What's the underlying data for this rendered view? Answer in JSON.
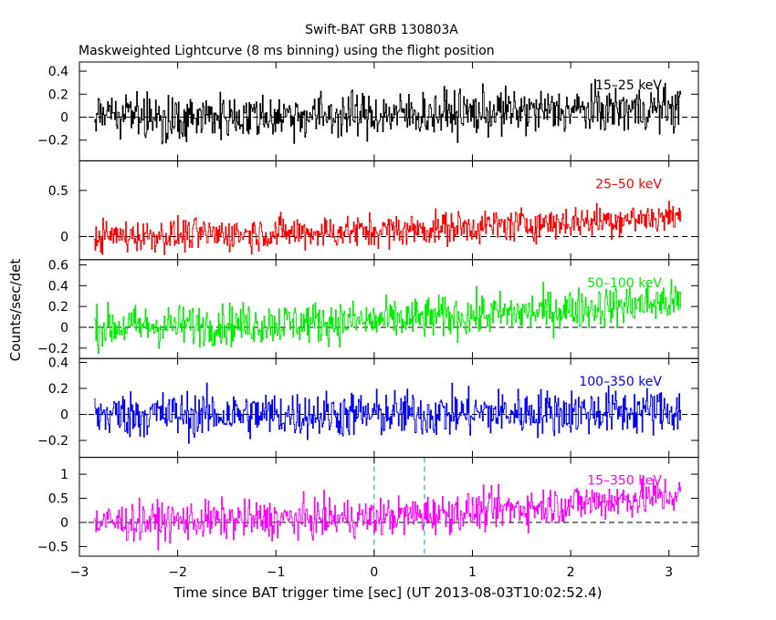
{
  "title": "Swift-BAT GRB 130803A",
  "subtitle": "Maskweighted Lightcurve (8 ms binning) using the flight position",
  "xlabel": "Time since BAT trigger time [sec] (UT 2013-08-03T10:02:52.4)",
  "ylabel": "Counts/sec/det",
  "chart_data": {
    "type": "line",
    "xlim": [
      -3,
      3.3
    ],
    "x_ticks": [
      "−3",
      "−2",
      "−1",
      "0",
      "1",
      "2",
      "3"
    ],
    "x_tick_values": [
      -3,
      -2,
      -1,
      0,
      1,
      2,
      3
    ],
    "t_range": [
      -2.85,
      3.12
    ],
    "bin_width_s": 0.008,
    "vertical_markers": [
      0,
      0.512
    ],
    "marker_color": "#1aa0b0",
    "series": [
      {
        "name": "15–25 keV",
        "color": "#000000",
        "ylim": [
          -0.38,
          0.48
        ],
        "y_ticks": [
          "0.4",
          "0.2",
          "0",
          "−0.2"
        ],
        "y_tick_values": [
          0.4,
          0.2,
          0,
          -0.2
        ],
        "trend": [
          [
            -2.85,
            0.0
          ],
          [
            0,
            0.02
          ],
          [
            3.12,
            0.08
          ]
        ],
        "noise": 0.1
      },
      {
        "name": "25–50 keV",
        "color": "#ff0000",
        "ylim": [
          -0.25,
          0.82
        ],
        "y_ticks": [
          "0.5",
          "0"
        ],
        "y_tick_values": [
          0.5,
          0
        ],
        "trend": [
          [
            -2.85,
            0.0
          ],
          [
            0,
            0.06
          ],
          [
            1.5,
            0.13
          ],
          [
            3.12,
            0.22
          ]
        ],
        "noise": 0.09
      },
      {
        "name": "50–100 keV",
        "color": "#00ee00",
        "ylim": [
          -0.3,
          0.65
        ],
        "y_ticks": [
          "0.6",
          "0.4",
          "0.2",
          "0",
          "−0.2"
        ],
        "y_tick_values": [
          0.6,
          0.4,
          0.2,
          0,
          -0.2
        ],
        "trend": [
          [
            -2.85,
            0.0
          ],
          [
            0,
            0.06
          ],
          [
            1.5,
            0.14
          ],
          [
            3.12,
            0.25
          ]
        ],
        "noise": 0.1
      },
      {
        "name": "100–350 keV",
        "color": "#0000ff",
        "ylim": [
          -0.33,
          0.43
        ],
        "y_ticks": [
          "0.4",
          "0.2",
          "0",
          "−0.2"
        ],
        "y_tick_values": [
          0.4,
          0.2,
          0,
          -0.2
        ],
        "trend": [
          [
            -2.85,
            0.0
          ],
          [
            0,
            0.0
          ],
          [
            3.12,
            0.03
          ]
        ],
        "noise": 0.09
      },
      {
        "name": "15–350 keV",
        "color": "#ff00ff",
        "ylim": [
          -0.7,
          1.35
        ],
        "y_ticks": [
          "1",
          "0.5",
          "0",
          "−0.5"
        ],
        "y_tick_values": [
          1,
          0.5,
          0,
          -0.5
        ],
        "trend": [
          [
            -2.85,
            0.0
          ],
          [
            0,
            0.1
          ],
          [
            1.5,
            0.3
          ],
          [
            3.12,
            0.58
          ]
        ],
        "noise": 0.2
      }
    ]
  }
}
